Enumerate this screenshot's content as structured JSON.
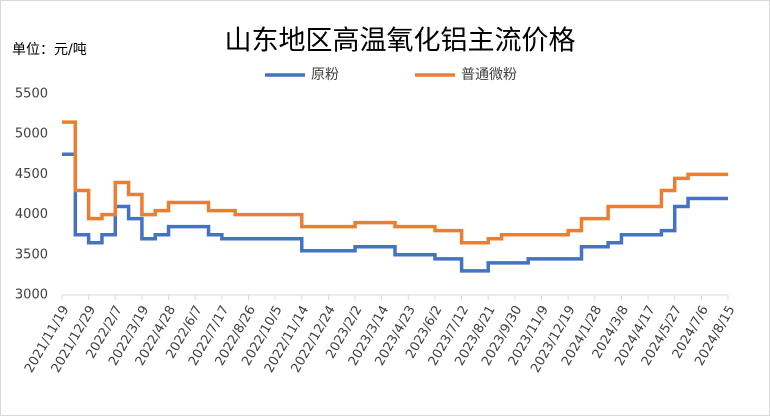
{
  "chart_data": {
    "type": "line",
    "title": "山东地区高温氧化铝主流价格",
    "unit_label": "单位：元/吨",
    "categories": [
      "2021/11/19",
      null,
      "2021/12/29",
      null,
      "2022/2/7",
      null,
      "2022/3/19",
      null,
      "2022/4/28",
      null,
      "2022/6/7",
      null,
      "2022/7/17",
      null,
      "2022/8/26",
      null,
      "2022/10/5",
      null,
      "2022/11/14",
      null,
      "2022/12/24",
      null,
      "2023/2/2",
      null,
      "2023/3/14",
      null,
      "2023/4/23",
      null,
      "2023/6/2",
      null,
      "2023/7/12",
      null,
      "2023/8/21",
      null,
      "2023/9/30",
      null,
      "2023/11/9",
      null,
      "2023/12/19",
      null,
      "2024/1/28",
      null,
      "2024/3/8",
      null,
      "2024/4/17",
      null,
      "2024/5/27",
      null,
      "2024/7/6",
      null,
      "2024/8/15"
    ],
    "series": [
      {
        "name": "原粉",
        "color": "#4472c4",
        "values": [
          4750,
          3750,
          3650,
          3750,
          4100,
          3950,
          3700,
          3750,
          3850,
          3850,
          3850,
          3750,
          3700,
          3700,
          3700,
          3700,
          3700,
          3700,
          3550,
          3550,
          3550,
          3550,
          3600,
          3600,
          3600,
          3500,
          3500,
          3500,
          3450,
          3450,
          3300,
          3300,
          3400,
          3400,
          3400,
          3450,
          3450,
          3450,
          3450,
          3600,
          3600,
          3650,
          3750,
          3750,
          3750,
          3800,
          4100,
          4200,
          4200,
          4200,
          4200
        ]
      },
      {
        "name": "普通微粉",
        "color": "#ed7d31",
        "values": [
          5150,
          4300,
          3950,
          4000,
          4400,
          4250,
          4000,
          4050,
          4150,
          4150,
          4150,
          4050,
          4050,
          4000,
          4000,
          4000,
          4000,
          4000,
          3850,
          3850,
          3850,
          3850,
          3900,
          3900,
          3900,
          3850,
          3850,
          3850,
          3800,
          3800,
          3650,
          3650,
          3700,
          3750,
          3750,
          3750,
          3750,
          3750,
          3800,
          3950,
          3950,
          4100,
          4100,
          4100,
          4100,
          4300,
          4450,
          4500,
          4500,
          4500,
          4500
        ]
      }
    ],
    "ylim": [
      3000,
      5500
    ],
    "yticks": [
      3000,
      3500,
      4000,
      4500,
      5000,
      5500
    ]
  }
}
